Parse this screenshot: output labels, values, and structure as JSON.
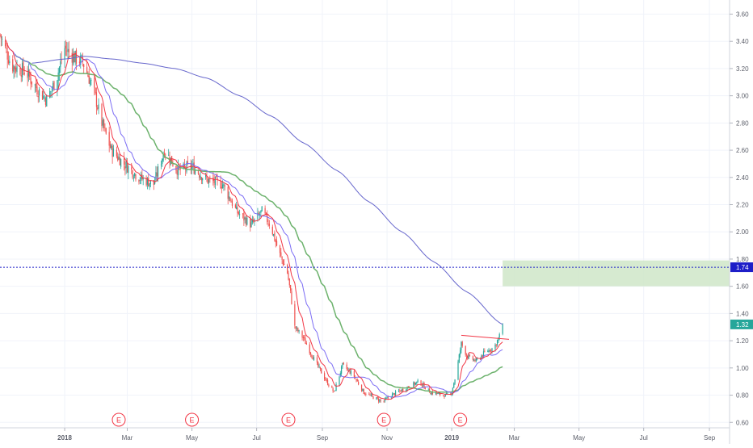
{
  "chart_data": {
    "type": "candlestick",
    "title": "",
    "xlabel": "",
    "ylabel": "",
    "ylim": [
      0.56,
      3.68
    ],
    "x_range": [
      "2017-11-01",
      "2019-09-20"
    ],
    "x_ticks": [
      {
        "date": "2018-01-01",
        "label": "2018",
        "bold": true
      },
      {
        "date": "2018-03-01",
        "label": "Mar"
      },
      {
        "date": "2018-05-01",
        "label": "May"
      },
      {
        "date": "2018-07-01",
        "label": "Jul"
      },
      {
        "date": "2018-09-01",
        "label": "Sep"
      },
      {
        "date": "2018-11-01",
        "label": "Nov"
      },
      {
        "date": "2019-01-01",
        "label": "2019",
        "bold": true
      },
      {
        "date": "2019-03-01",
        "label": "Mar"
      },
      {
        "date": "2019-05-01",
        "label": "May"
      },
      {
        "date": "2019-07-01",
        "label": "Jul"
      },
      {
        "date": "2019-09-01",
        "label": "Sep"
      }
    ],
    "y_ticks": [
      "0.60",
      "0.80",
      "1.00",
      "1.20",
      "1.40",
      "1.60",
      "1.80",
      "2.00",
      "2.20",
      "2.40",
      "2.60",
      "2.80",
      "3.00",
      "3.20",
      "3.40",
      "3.60"
    ],
    "price_path": [
      [
        "2017-11-01",
        3.45
      ],
      [
        "2017-11-12",
        3.22
      ],
      [
        "2017-11-25",
        3.18
      ],
      [
        "2017-12-06",
        3.05
      ],
      [
        "2017-12-15",
        2.97
      ],
      [
        "2017-12-24",
        3.12
      ],
      [
        "2018-01-01",
        3.35
      ],
      [
        "2018-01-10",
        3.28
      ],
      [
        "2018-01-18",
        3.25
      ],
      [
        "2018-01-28",
        3.05
      ],
      [
        "2018-02-05",
        2.8
      ],
      [
        "2018-02-14",
        2.6
      ],
      [
        "2018-02-26",
        2.5
      ],
      [
        "2018-03-12",
        2.4
      ],
      [
        "2018-03-26",
        2.35
      ],
      [
        "2018-04-05",
        2.6
      ],
      [
        "2018-04-18",
        2.45
      ],
      [
        "2018-05-01",
        2.48
      ],
      [
        "2018-05-15",
        2.38
      ],
      [
        "2018-05-30",
        2.35
      ],
      [
        "2018-06-12",
        2.15
      ],
      [
        "2018-06-26",
        2.05
      ],
      [
        "2018-07-06",
        2.15
      ],
      [
        "2018-07-14",
        2.05
      ],
      [
        "2018-07-22",
        1.85
      ],
      [
        "2018-07-30",
        1.7
      ],
      [
        "2018-08-02",
        1.55
      ],
      [
        "2018-08-06",
        1.3
      ],
      [
        "2018-08-14",
        1.22
      ],
      [
        "2018-08-25",
        1.05
      ],
      [
        "2018-09-05",
        0.9
      ],
      [
        "2018-09-12",
        0.82
      ],
      [
        "2018-09-20",
        1.02
      ],
      [
        "2018-09-30",
        0.95
      ],
      [
        "2018-10-10",
        0.82
      ],
      [
        "2018-10-20",
        0.78
      ],
      [
        "2018-10-28",
        0.75
      ],
      [
        "2018-11-05",
        0.8
      ],
      [
        "2018-11-18",
        0.85
      ],
      [
        "2018-12-01",
        0.9
      ],
      [
        "2018-12-12",
        0.82
      ],
      [
        "2018-12-24",
        0.8
      ],
      [
        "2018-12-31",
        0.8
      ],
      [
        "2019-01-05",
        0.95
      ],
      [
        "2019-01-10",
        1.18
      ],
      [
        "2019-01-16",
        1.08
      ],
      [
        "2019-01-24",
        1.05
      ],
      [
        "2019-02-02",
        1.12
      ],
      [
        "2019-02-10",
        1.15
      ],
      [
        "2019-02-16",
        1.25
      ],
      [
        "2019-02-18",
        1.32
      ]
    ],
    "series": [
      {
        "line": "sma_short",
        "color": "#f23645",
        "width": 1
      },
      {
        "line": "sma_medium",
        "color": "#7b6cf4",
        "width": 1
      },
      {
        "line": "sma_long",
        "color": "#6cb26c",
        "width": 1.5
      },
      {
        "line": "sma_200",
        "color": "#6666cc",
        "width": 1
      }
    ],
    "sma_200_path": [
      [
        "2017-12-01",
        3.24
      ],
      [
        "2018-01-01",
        3.27
      ],
      [
        "2018-01-20",
        3.29
      ],
      [
        "2018-02-15",
        3.27
      ],
      [
        "2018-03-15",
        3.24
      ],
      [
        "2018-04-15",
        3.2
      ],
      [
        "2018-05-15",
        3.13
      ],
      [
        "2018-06-15",
        3.0
      ],
      [
        "2018-07-15",
        2.85
      ],
      [
        "2018-08-15",
        2.65
      ],
      [
        "2018-09-15",
        2.45
      ],
      [
        "2018-10-15",
        2.22
      ],
      [
        "2018-11-15",
        2.0
      ],
      [
        "2018-12-15",
        1.78
      ],
      [
        "2019-01-15",
        1.56
      ],
      [
        "2019-02-18",
        1.32
      ]
    ],
    "horizontal_line": {
      "value": 1.74,
      "label": "1.74",
      "color": "#1e1ec8"
    },
    "last_price": {
      "value": 1.32,
      "label": "1.32",
      "color": "#26a69a"
    },
    "zone": {
      "from": "2019-02-18",
      "to": "2019-09-20",
      "y_low": 1.6,
      "y_high": 1.79,
      "color": "#cfe6c8"
    },
    "trendline": {
      "from": [
        "2019-01-10",
        1.24
      ],
      "to": [
        "2019-02-24",
        1.21
      ],
      "color": "#f23645"
    },
    "event_markers": [
      {
        "date": "2018-02-21",
        "label": "E"
      },
      {
        "date": "2018-05-01",
        "label": "E"
      },
      {
        "date": "2018-07-31",
        "label": "E"
      },
      {
        "date": "2018-10-29",
        "label": "E"
      },
      {
        "date": "2019-01-09",
        "label": "E"
      }
    ],
    "colors": {
      "up": "#26a69a",
      "down": "#ef5350",
      "grid": "#f0f3fa",
      "axis_text": "#5d606b",
      "marker": "#f23645"
    },
    "grid": true,
    "legend": "none"
  }
}
